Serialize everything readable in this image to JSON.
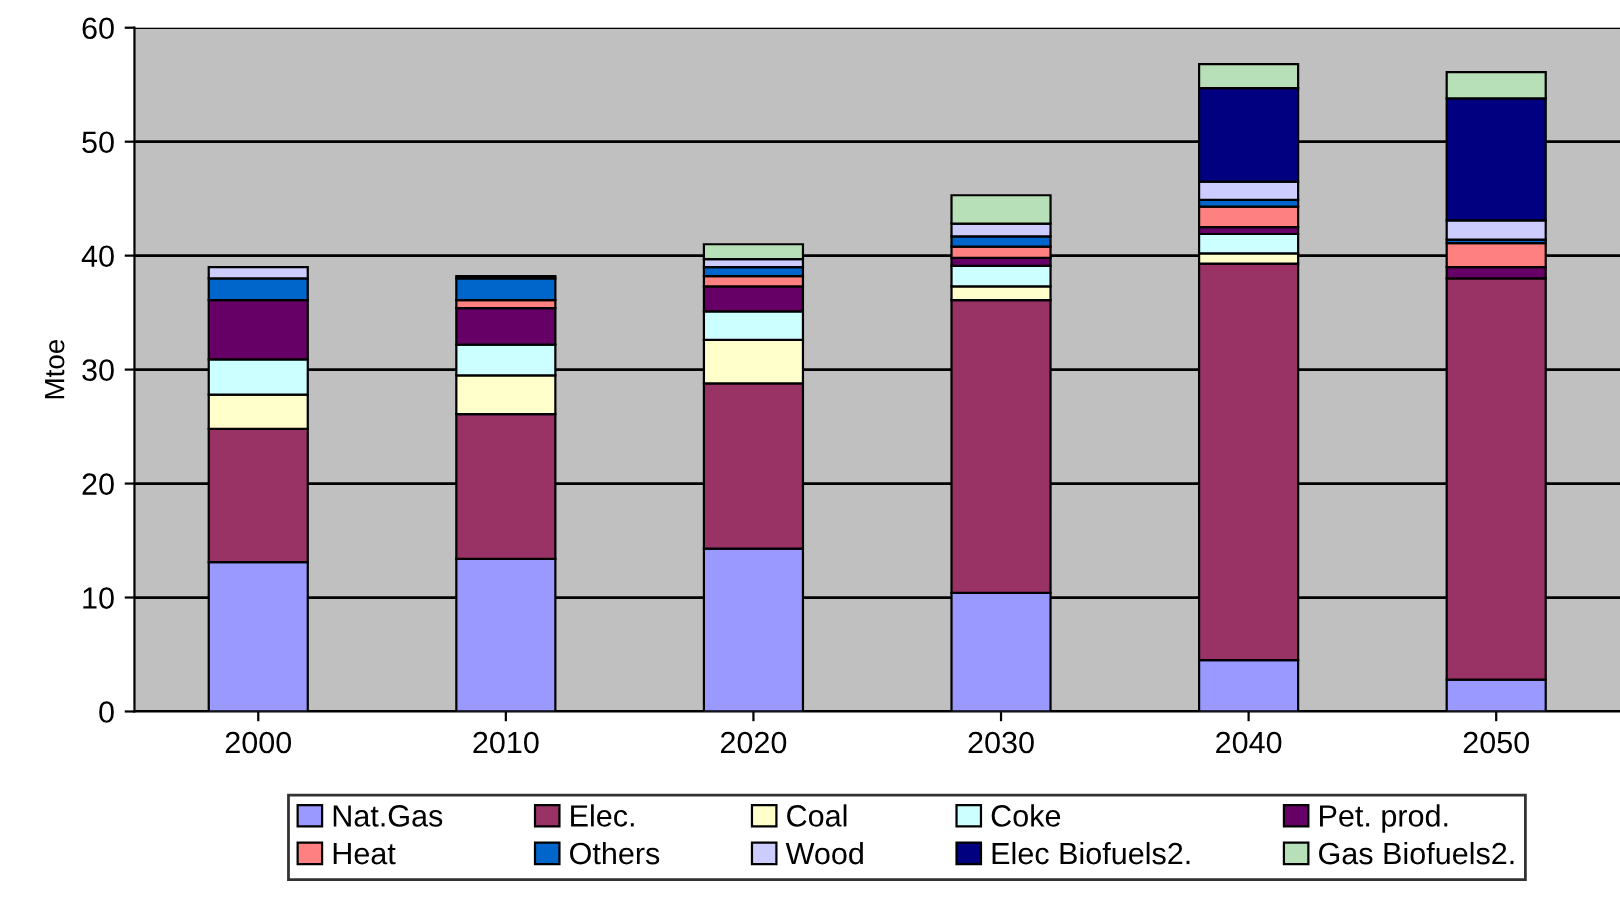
{
  "chart_data": {
    "type": "bar",
    "stacked": true,
    "ylabel": "Mtoe",
    "categories": [
      "2000",
      "2010",
      "2020",
      "2030",
      "2040",
      "2050"
    ],
    "series": [
      {
        "name": "Nat.Gas",
        "color": "#9999ff",
        "values": [
          13.1,
          13.4,
          14.3,
          10.4,
          4.5,
          2.8
        ]
      },
      {
        "name": "Elec.",
        "color": "#993366",
        "values": [
          11.7,
          12.7,
          14.5,
          25.7,
          34.8,
          35.2
        ]
      },
      {
        "name": "Coal",
        "color": "#ffffcc",
        "values": [
          3.0,
          3.4,
          3.8,
          1.2,
          0.9,
          null
        ]
      },
      {
        "name": "Coke",
        "color": "#ccffff",
        "values": [
          3.1,
          2.7,
          2.5,
          1.8,
          1.7,
          null
        ]
      },
      {
        "name": "Pet. prod.",
        "color": "#660066",
        "values": [
          5.2,
          3.2,
          2.2,
          0.7,
          0.6,
          1.0
        ]
      },
      {
        "name": "Heat",
        "color": "#ff8080",
        "values": [
          null,
          0.7,
          0.9,
          1.0,
          1.8,
          2.1
        ]
      },
      {
        "name": "Others",
        "color": "#0066cc",
        "values": [
          1.9,
          1.9,
          0.8,
          0.9,
          0.6,
          0.3
        ]
      },
      {
        "name": "Wood",
        "color": "#ccccff",
        "values": [
          1.0,
          0.2,
          0.7,
          1.1,
          1.6,
          1.7
        ]
      },
      {
        "name": "Elec Biofuels2.",
        "color": "#000080",
        "values": [
          null,
          null,
          null,
          null,
          8.2,
          10.7
        ]
      },
      {
        "name": "Gas Biofuels2.",
        "color": "#b8e0b8",
        "values": [
          null,
          null,
          1.3,
          2.5,
          2.1,
          2.3
        ]
      }
    ],
    "ylim": [
      0,
      60
    ],
    "yticks": [
      0,
      10,
      20,
      30,
      40,
      50,
      60
    ],
    "grid": "y",
    "legend": "bottom"
  }
}
